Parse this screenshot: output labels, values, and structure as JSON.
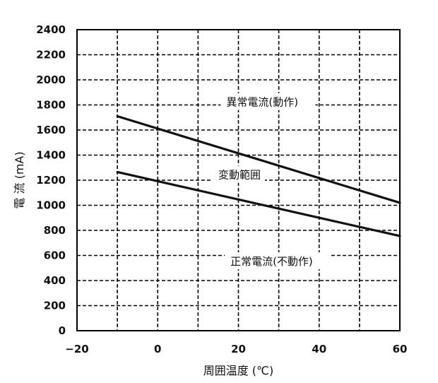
{
  "chart_data": {
    "type": "line",
    "xlabel": "周囲温度 (℃)",
    "ylabel": "電 流 (mA)",
    "xlim": [
      -20,
      60
    ],
    "ylim": [
      0,
      2400
    ],
    "x_ticks": [
      "−20",
      "0",
      "20",
      "40",
      "60"
    ],
    "y_ticks": [
      "0",
      "200",
      "400",
      "600",
      "800",
      "1000",
      "1200",
      "1400",
      "1600",
      "1800",
      "2000",
      "2200",
      "2400"
    ],
    "grid": true,
    "series": [
      {
        "x": [
          -10,
          60
        ],
        "values": [
          1710,
          1020
        ]
      },
      {
        "x": [
          -10,
          60
        ],
        "values": [
          1265,
          755
        ]
      }
    ],
    "annotations": [
      {
        "text": "異常電流(動作)",
        "x": 17,
        "y": 1810
      },
      {
        "text": "変動範囲",
        "x": 15,
        "y": 1230
      },
      {
        "text": "正常電流(不動作)",
        "x": 18,
        "y": 540
      }
    ]
  }
}
